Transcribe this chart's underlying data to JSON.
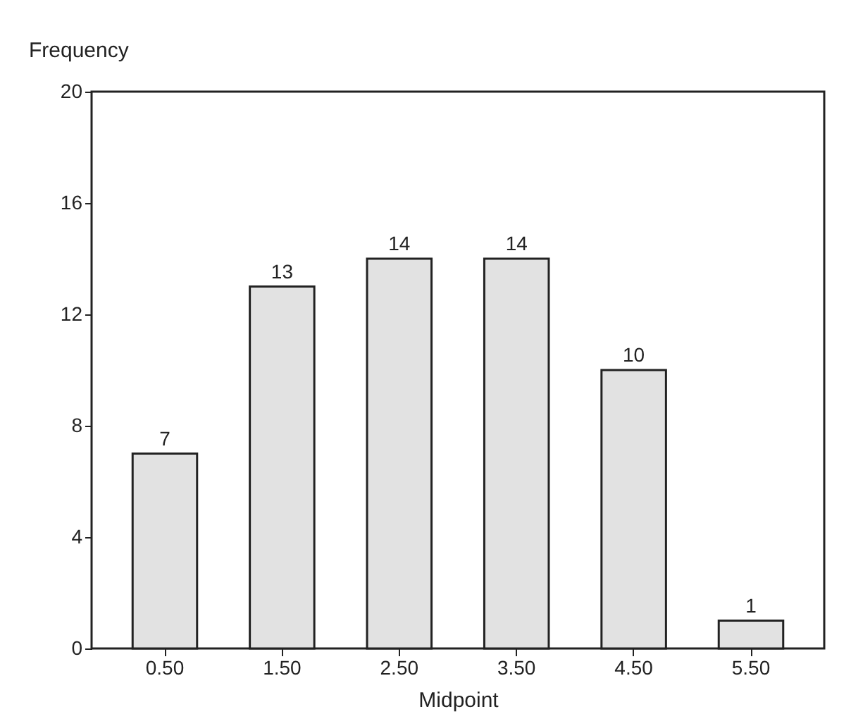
{
  "chart_data": {
    "type": "bar",
    "xlabel": "Midpoint",
    "ylabel": "Frequency",
    "categories": [
      "0.50",
      "1.50",
      "2.50",
      "3.50",
      "4.50",
      "5.50"
    ],
    "values": [
      7,
      13,
      14,
      14,
      10,
      1
    ],
    "color": "#e2e2e2",
    "ylim": [
      0,
      20
    ],
    "yticks": [
      0,
      4,
      8,
      12,
      16,
      20
    ],
    "grid": false,
    "data_labels": true
  }
}
